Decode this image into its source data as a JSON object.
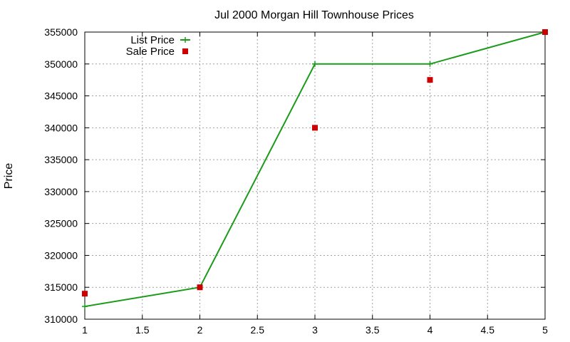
{
  "chart_data": {
    "type": "line",
    "title": "Jul 2000 Morgan Hill Townhouse Prices",
    "xlabel": "",
    "ylabel": "Price",
    "xlim": [
      1,
      5
    ],
    "ylim": [
      310000,
      355000
    ],
    "x_ticks": [
      "1",
      "1.5",
      "2",
      "2.5",
      "3",
      "3.5",
      "4",
      "4.5",
      "5"
    ],
    "y_ticks": [
      "310000",
      "315000",
      "320000",
      "325000",
      "330000",
      "335000",
      "340000",
      "345000",
      "350000",
      "355000"
    ],
    "grid": true,
    "legend_position": "top-left",
    "series": [
      {
        "name": "List Price",
        "style": "line-with-plus-markers",
        "color": "#1a9c1a",
        "x": [
          1,
          2,
          3,
          4,
          5
        ],
        "y": [
          312000,
          315000,
          350000,
          350000,
          355000
        ]
      },
      {
        "name": "Sale Price",
        "style": "square-markers",
        "color": "#cc0000",
        "x": [
          1,
          2,
          3,
          4,
          5
        ],
        "y": [
          314000,
          315000,
          340000,
          347500,
          355000
        ]
      }
    ]
  }
}
